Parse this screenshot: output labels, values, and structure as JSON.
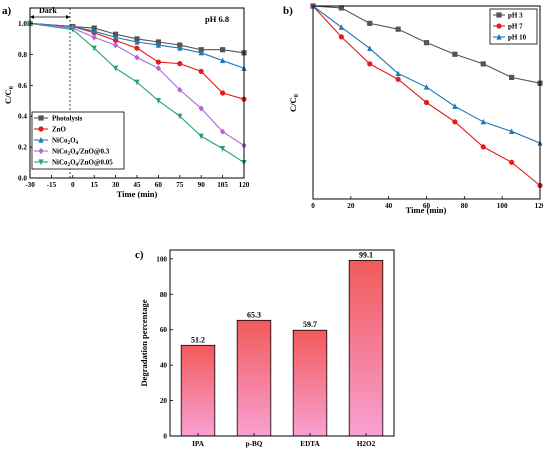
{
  "chart_data": [
    {
      "panel": "a)",
      "type": "line",
      "annotation": "pH 6.8",
      "region_label": "Dark",
      "xlabel": "Time (min)",
      "ylabel": "C/C0",
      "xlim": [
        -30,
        120
      ],
      "ylim": [
        0.0,
        1.1
      ],
      "xticks": [
        -30,
        -15,
        0,
        15,
        30,
        45,
        60,
        75,
        90,
        105,
        120
      ],
      "yticks": [
        0.0,
        0.2,
        0.4,
        0.6,
        0.8,
        1.0
      ],
      "legend_position": "bottom-left",
      "x": [
        -30,
        0,
        15,
        30,
        45,
        60,
        75,
        90,
        105,
        120
      ],
      "series": [
        {
          "name": "Photolysis",
          "color": "#555555",
          "marker": "square",
          "values": [
            1.0,
            0.98,
            0.97,
            0.93,
            0.9,
            0.88,
            0.86,
            0.83,
            0.83,
            0.81
          ]
        },
        {
          "name": "ZnO",
          "color": "#e41a1c",
          "marker": "circle",
          "values": [
            1.0,
            0.98,
            0.94,
            0.89,
            0.84,
            0.75,
            0.74,
            0.69,
            0.55,
            0.51
          ]
        },
        {
          "name": "NiCo2O4",
          "color": "#1f77b4",
          "marker": "triangle",
          "values": [
            1.0,
            0.98,
            0.95,
            0.91,
            0.88,
            0.86,
            0.84,
            0.81,
            0.76,
            0.71
          ]
        },
        {
          "name": "NiCo2O4/ZnO@0.3",
          "color": "#b266d6",
          "marker": "diamond",
          "values": [
            1.0,
            0.97,
            0.91,
            0.86,
            0.78,
            0.71,
            0.57,
            0.45,
            0.3,
            0.21
          ]
        },
        {
          "name": "NiCo2O4/ZnO@0.05",
          "color": "#27a37a",
          "marker": "triangle-down",
          "values": [
            1.0,
            0.96,
            0.84,
            0.71,
            0.62,
            0.5,
            0.4,
            0.27,
            0.19,
            0.1
          ]
        }
      ]
    },
    {
      "panel": "b)",
      "type": "line",
      "xlabel": "Time (min)",
      "ylabel": "C/C0",
      "xlim": [
        0,
        120
      ],
      "ylim": [
        0.0,
        1.0
      ],
      "xticks": [
        0,
        20,
        40,
        60,
        80,
        100,
        120
      ],
      "legend_position": "top-right",
      "x": [
        0,
        15,
        30,
        45,
        60,
        75,
        90,
        105,
        120
      ],
      "series": [
        {
          "name": "pH 3",
          "color": "#555555",
          "marker": "square",
          "values": [
            1.0,
            0.99,
            0.91,
            0.88,
            0.81,
            0.75,
            0.7,
            0.63,
            0.6
          ]
        },
        {
          "name": "pH 7",
          "color": "#e41a1c",
          "marker": "circle",
          "values": [
            1.0,
            0.84,
            0.7,
            0.62,
            0.5,
            0.4,
            0.27,
            0.19,
            0.07
          ]
        },
        {
          "name": "pH 10",
          "color": "#1f77b4",
          "marker": "triangle",
          "values": [
            1.0,
            0.89,
            0.78,
            0.65,
            0.58,
            0.48,
            0.4,
            0.35,
            0.29
          ]
        }
      ]
    },
    {
      "panel": "c)",
      "type": "bar",
      "xlabel": "",
      "ylabel": "Degradation percentage",
      "ylim": [
        0,
        105
      ],
      "yticks": [
        0,
        20,
        40,
        60,
        80,
        100
      ],
      "categories": [
        "IPA",
        "p-BQ",
        "EDTA",
        "H2O2"
      ],
      "values": [
        51.2,
        65.3,
        59.7,
        99.1
      ],
      "value_labels": [
        "51.2",
        "65.3",
        "59.7",
        "99.1"
      ],
      "bar_gradient": [
        "#f25a5a",
        "#f8a0d2"
      ]
    }
  ]
}
